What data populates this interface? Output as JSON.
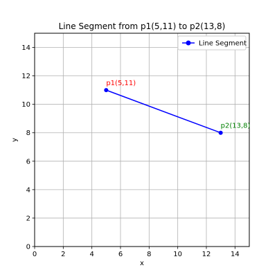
{
  "chart_data": {
    "type": "line",
    "title": "Line Segment from p1(5,11) to p2(13,8)",
    "xlabel": "x",
    "ylabel": "y",
    "xlim": [
      0,
      15
    ],
    "ylim": [
      0,
      15
    ],
    "xticks": [
      0,
      2,
      4,
      6,
      8,
      10,
      12,
      14
    ],
    "yticks": [
      0,
      2,
      4,
      6,
      8,
      10,
      12,
      14
    ],
    "grid": true,
    "legend_position": "top-right",
    "series": [
      {
        "name": "Line Segment",
        "color": "#0000ff",
        "marker": "circle",
        "points": [
          {
            "x": 5,
            "y": 11
          },
          {
            "x": 13,
            "y": 8
          }
        ]
      }
    ],
    "annotations": [
      {
        "text": "p1(5,11)",
        "x": 5,
        "y": 11,
        "color": "#ff0000"
      },
      {
        "text": "p2(13,8)",
        "x": 13,
        "y": 8,
        "color": "#008000"
      }
    ]
  }
}
